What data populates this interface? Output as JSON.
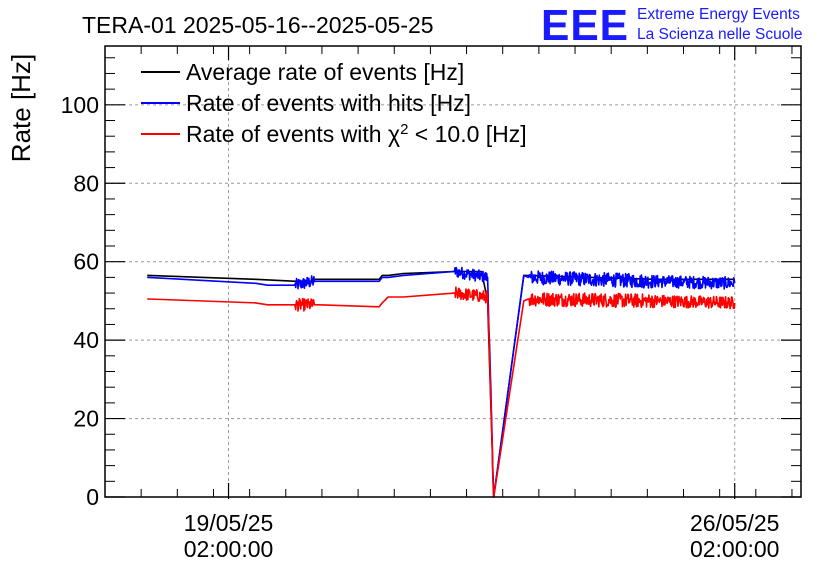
{
  "chart_data": {
    "type": "line",
    "title": "TERA-01 2025-05-16--2025-05-25",
    "ylabel": "Rate [Hz]",
    "xlabel": "",
    "ylim": [
      0,
      115
    ],
    "y_ticks": [
      0,
      20,
      40,
      60,
      80,
      100
    ],
    "x_range": [
      "2025-05-17 09:00",
      "2025-05-27 00:00"
    ],
    "x_ticks": [
      {
        "at": "2025-05-19 02:00",
        "line1": "19/05/25",
        "line2": "02:00:00"
      },
      {
        "at": "2025-05-26 02:00",
        "line1": "26/05/25",
        "line2": "02:00:00"
      }
    ],
    "grid": true,
    "legend_position": "top-left",
    "legend": [
      {
        "label_pre": "Average rate of events [Hz]",
        "sup": "",
        "label_post": "",
        "color": "#000000"
      },
      {
        "label_pre": "Rate of events with hits [Hz]",
        "sup": "",
        "label_post": "",
        "color": "#0000ff"
      },
      {
        "label_pre": "Rate of events with χ",
        "sup": "2",
        "label_post": " < 10.0 [Hz]",
        "color": "#ff0000"
      }
    ],
    "series": [
      {
        "name": "Average rate of events [Hz]",
        "color": "#000000",
        "x": [
          "2025-05-17 23:00",
          "2025-05-17 23:30",
          "2025-05-19 11:00",
          "2025-05-20 00:30",
          "2025-05-20 06:00",
          "2025-05-20 06:30",
          "2025-05-21 04:00",
          "2025-05-21 05:00",
          "2025-05-21 07:00",
          "2025-05-21 12:00",
          "2025-05-22 05:00",
          "2025-05-22 14:00",
          "2025-05-22 16:00",
          "2025-05-22 18:00",
          "2025-05-23 04:00",
          "2025-05-23 05:30",
          "2025-05-24 23:00",
          "2025-05-26 02:00"
        ],
        "y": [
          56.5,
          56.5,
          55.5,
          55,
          55,
          55.5,
          55.5,
          56.5,
          56.5,
          57,
          57.5,
          57.5,
          50,
          0,
          56.5,
          56.5,
          55.5,
          55.5
        ]
      },
      {
        "name": "Rate of events with hits [Hz]",
        "color": "#0000ff",
        "x": [
          "2025-05-17 23:00",
          "2025-05-17 23:30",
          "2025-05-19 11:00",
          "2025-05-19 15:00",
          "2025-05-20 00:00",
          "2025-05-20 06:30",
          "2025-05-20 08:00",
          "2025-05-21 04:00",
          "2025-05-21 05:00",
          "2025-05-21 07:00",
          "2025-05-21 12:00",
          "2025-05-22 05:00",
          "2025-05-22 16:00",
          "2025-05-22 18:00",
          "2025-05-23 04:00",
          "2025-05-23 05:30",
          "2025-05-24 23:00",
          "2025-05-26 02:00"
        ],
        "y": [
          56,
          56,
          54.5,
          54,
          54,
          55,
          55,
          55,
          56,
          56,
          56.5,
          57.5,
          56,
          0,
          56.5,
          56,
          55,
          54.5
        ],
        "noise": [
          0,
          0,
          0,
          0,
          1.6,
          0,
          0,
          0,
          0,
          0,
          0,
          1.5,
          1.6,
          0,
          0,
          1.8,
          1.6,
          1.6
        ]
      },
      {
        "name": "Rate of events with χ2 < 10.0 [Hz]",
        "color": "#ff0000",
        "x": [
          "2025-05-17 23:00",
          "2025-05-17 23:30",
          "2025-05-19 11:00",
          "2025-05-19 15:00",
          "2025-05-20 00:00",
          "2025-05-20 06:30",
          "2025-05-20 08:00",
          "2025-05-21 04:00",
          "2025-05-21 05:00",
          "2025-05-21 07:00",
          "2025-05-21 12:00",
          "2025-05-22 05:00",
          "2025-05-22 16:00",
          "2025-05-22 18:00",
          "2025-05-23 04:00",
          "2025-05-23 05:30",
          "2025-05-24 23:00",
          "2025-05-26 02:00"
        ],
        "y": [
          50.5,
          50.5,
          49.5,
          49,
          49,
          49,
          49,
          48.5,
          49.5,
          51,
          51,
          52,
          51,
          0,
          50,
          50.5,
          50,
          49.5
        ],
        "noise": [
          0,
          0,
          0,
          0,
          1.6,
          0,
          0,
          0,
          0,
          0,
          0,
          1.6,
          1.6,
          0,
          0,
          1.8,
          1.6,
          1.6
        ]
      }
    ]
  },
  "logo": {
    "letters": "EEE",
    "line1": "Extreme Energy Events",
    "line2": "La Scienza nelle Scuole"
  }
}
